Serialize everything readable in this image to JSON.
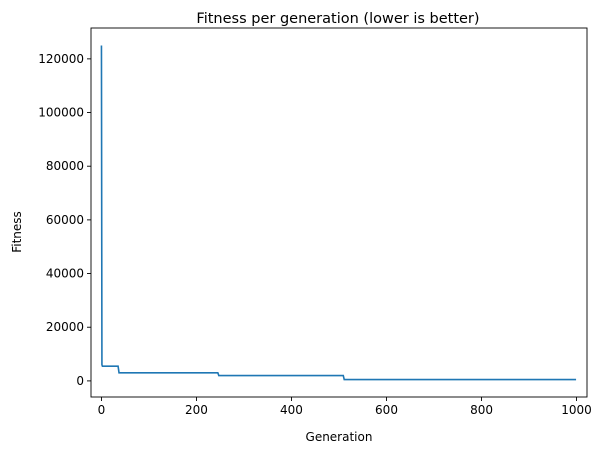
{
  "chart_data": {
    "type": "line",
    "title": "Fitness per generation (lower is better)",
    "xlabel": "Generation",
    "ylabel": "Fitness",
    "xlim": [
      -22,
      1022
    ],
    "ylim": [
      -6000,
      131500
    ],
    "xticks": [
      0,
      200,
      400,
      600,
      800,
      1000
    ],
    "xtick_labels": [
      "0",
      "200",
      "400",
      "600",
      "800",
      "1000"
    ],
    "yticks": [
      0,
      20000,
      40000,
      60000,
      80000,
      100000,
      120000
    ],
    "ytick_labels": [
      "0",
      "20000",
      "40000",
      "60000",
      "80000",
      "100000",
      "120000"
    ],
    "grid": false,
    "series": [
      {
        "color": "#1f77b4",
        "step": true,
        "x": [
          0,
          1,
          2,
          35,
          37,
          245,
          247,
          509,
          511,
          999
        ],
        "y": [
          125000,
          6000,
          5500,
          5500,
          3000,
          3000,
          2000,
          2000,
          500,
          500
        ]
      }
    ]
  }
}
